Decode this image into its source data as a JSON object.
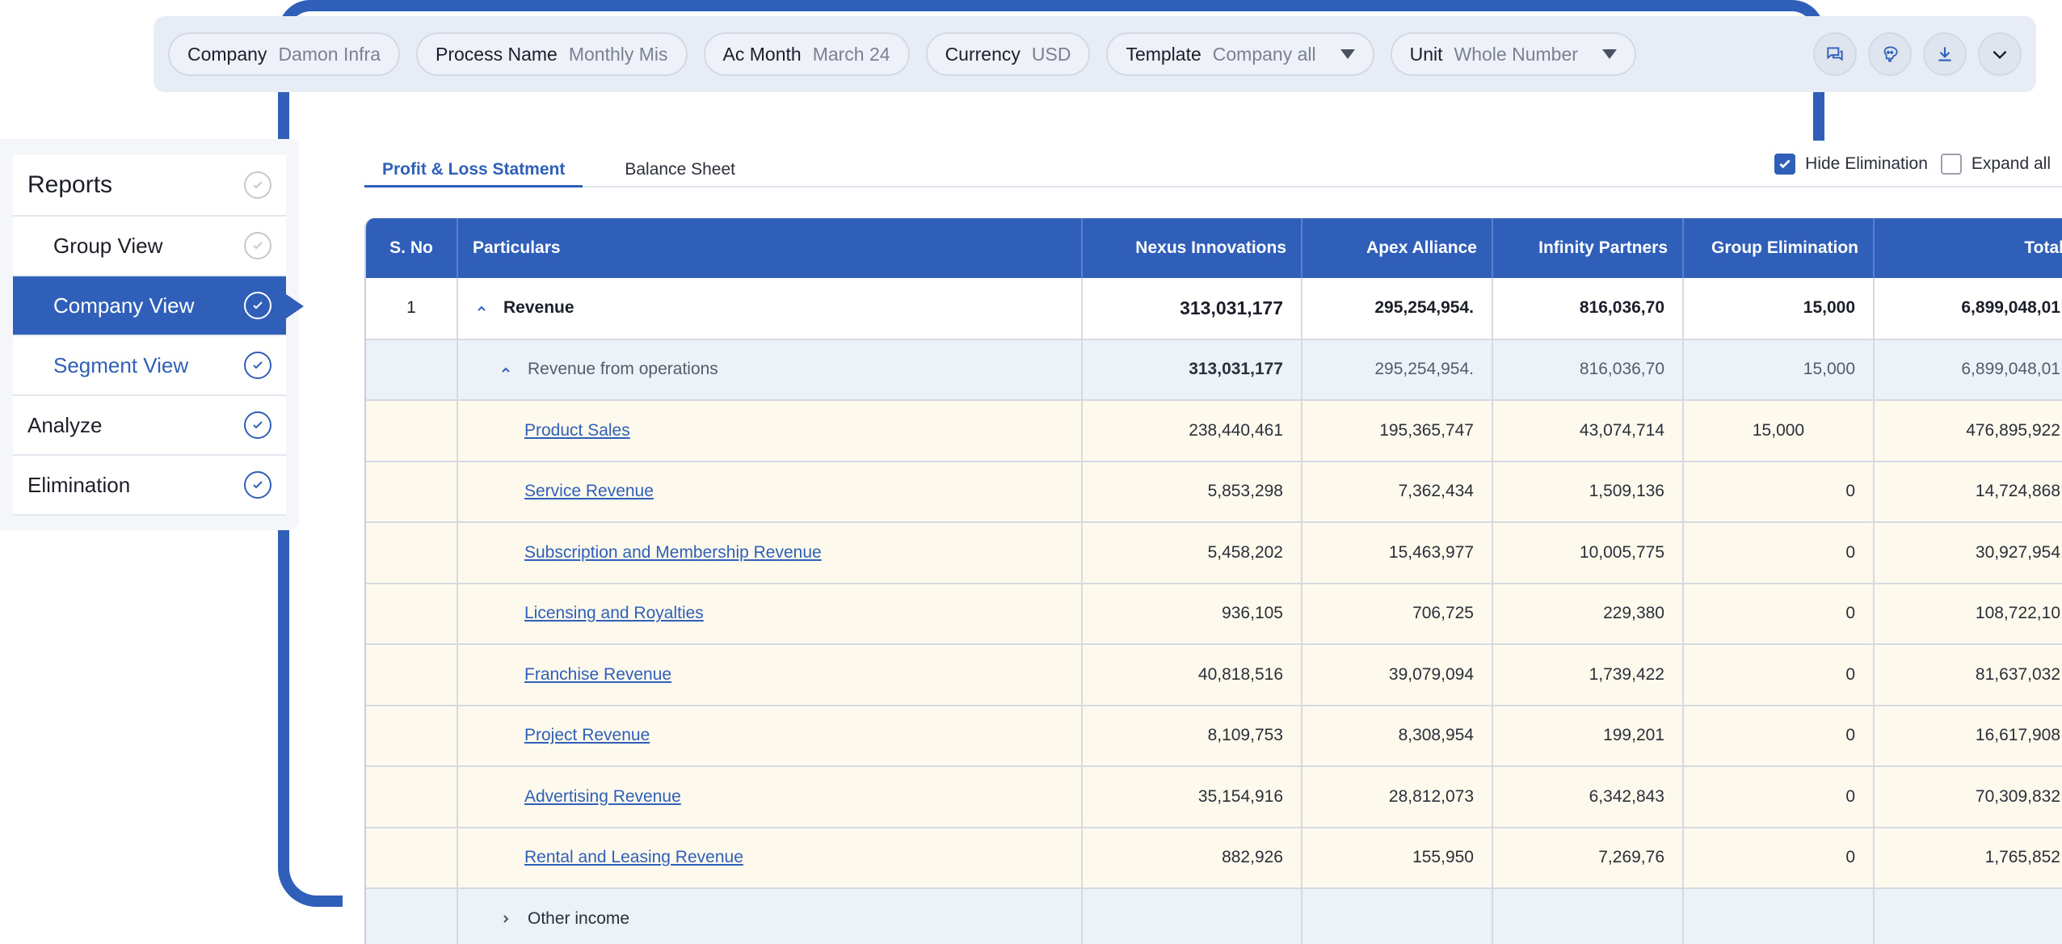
{
  "filters": [
    {
      "label": "Company",
      "value": "Damon Infra",
      "dropdown": false
    },
    {
      "label": "Process Name",
      "value": "Monthly Mis",
      "dropdown": false
    },
    {
      "label": "Ac Month",
      "value": "March 24",
      "dropdown": false
    },
    {
      "label": "Currency",
      "value": "USD",
      "dropdown": false
    },
    {
      "label": "Template",
      "value": "Company all",
      "dropdown": true
    },
    {
      "label": "Unit",
      "value": "Whole Number",
      "dropdown": true
    }
  ],
  "toolbar_icons": [
    "chat-icon",
    "brain-icon",
    "download-icon",
    "chevron-down-icon"
  ],
  "sidebar": {
    "title": "Reports",
    "items": [
      {
        "label": "Group View"
      },
      {
        "label": "Company View"
      },
      {
        "label": "Segment View"
      },
      {
        "label": "Analyze"
      },
      {
        "label": "Elimination"
      }
    ]
  },
  "tabs": [
    {
      "label": "Profit & Loss Statment"
    },
    {
      "label": "Balance Sheet"
    }
  ],
  "options": {
    "hide_elimination": "Hide Elimination",
    "expand_all": "Expand all"
  },
  "table": {
    "headers": [
      "S. No",
      "Particulars",
      "Nexus Innovations",
      "Apex Alliance",
      "Infinity Partners",
      "Group Elimination",
      "Total"
    ],
    "revenue": {
      "sno": "1",
      "name": "Revenue",
      "values": [
        "313,031,177",
        "295,254,954.",
        "816,036,70",
        "15,000",
        "6,899,048,01"
      ]
    },
    "operations": {
      "name": "Revenue from operations",
      "values": [
        "313,031,177",
        "295,254,954.",
        "816,036,70",
        "15,000",
        "6,899,048,01"
      ]
    },
    "items": [
      {
        "name": "Product Sales",
        "values": [
          "238,440,461",
          "195,365,747",
          "43,074,714",
          "15,000",
          "476,895,922"
        ]
      },
      {
        "name": "Service Revenue",
        "values": [
          "5,853,298",
          "7,362,434",
          "1,509,136",
          "0",
          "14,724,868"
        ]
      },
      {
        "name": "Subscription and Membership Revenue",
        "values": [
          "5,458,202",
          "15,463,977",
          "10,005,775",
          "0",
          "30,927,954"
        ]
      },
      {
        "name": "Licensing and Royalties",
        "values": [
          "936,105",
          "706,725",
          "229,380",
          "0",
          "108,722,10"
        ]
      },
      {
        "name": "Franchise Revenue",
        "values": [
          "40,818,516",
          "39,079,094",
          "1,739,422",
          "0",
          "81,637,032"
        ]
      },
      {
        "name": "Project Revenue",
        "values": [
          "8,109,753",
          "8,308,954",
          "199,201",
          "0",
          "16,617,908"
        ]
      },
      {
        "name": "Advertising Revenue",
        "values": [
          "35,154,916",
          "28,812,073",
          "6,342,843",
          "0",
          "70,309,832"
        ]
      },
      {
        "name": "Rental and Leasing Revenue",
        "values": [
          "882,926",
          "155,950",
          "7,269,76",
          "0",
          "1,765,852"
        ]
      }
    ],
    "other_income": {
      "name": "Other income"
    }
  }
}
